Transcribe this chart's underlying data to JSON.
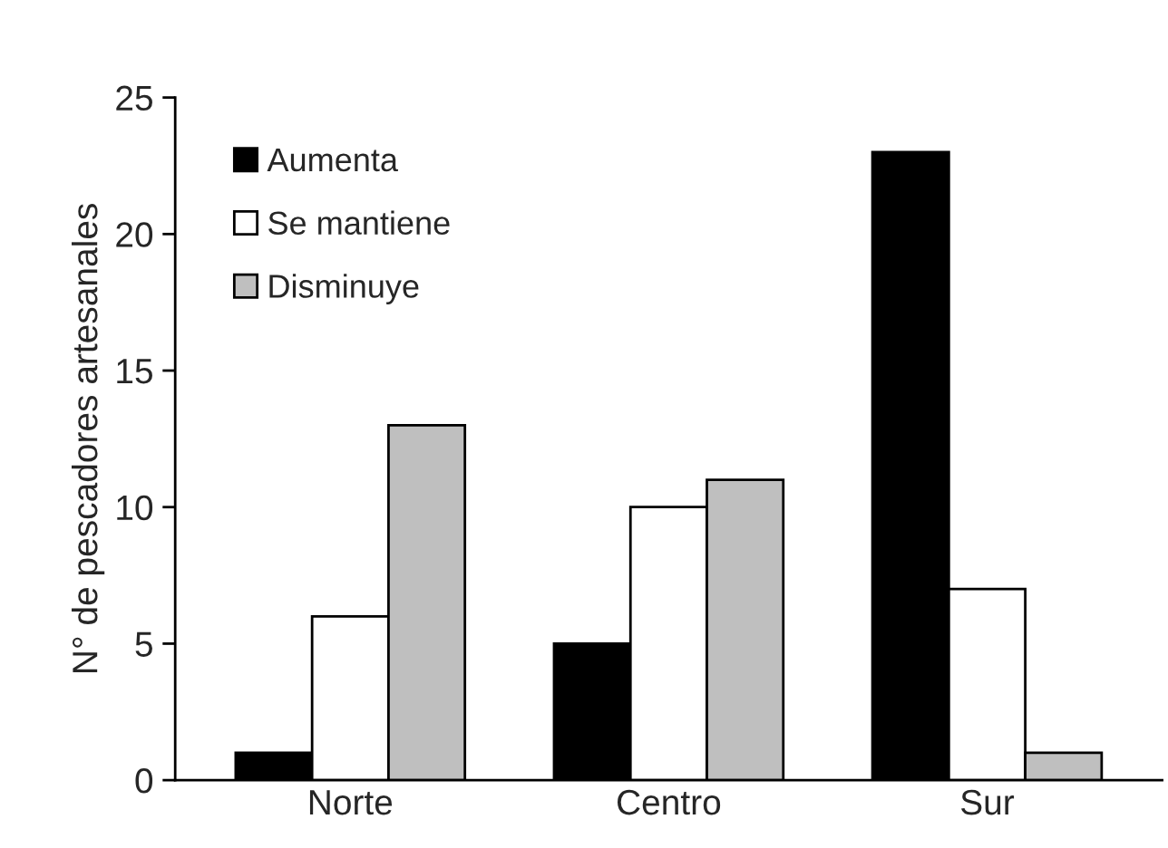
{
  "chart_data": {
    "type": "bar",
    "ylabel": "N° de pescadores artesanales",
    "categories": [
      "Norte",
      "Centro",
      "Sur"
    ],
    "series": [
      {
        "name": "Aumenta",
        "color": "#000000",
        "values": [
          1,
          5,
          23
        ]
      },
      {
        "name": "Se mantiene",
        "color": "#ffffff",
        "values": [
          6,
          10,
          7
        ]
      },
      {
        "name": "Disminuye",
        "color": "#bfbfbf",
        "values": [
          13,
          11,
          1
        ]
      }
    ],
    "ylim": [
      0,
      25
    ],
    "yticks": [
      0,
      5,
      10,
      15,
      20,
      25
    ],
    "grid": false,
    "legend": "top left"
  }
}
